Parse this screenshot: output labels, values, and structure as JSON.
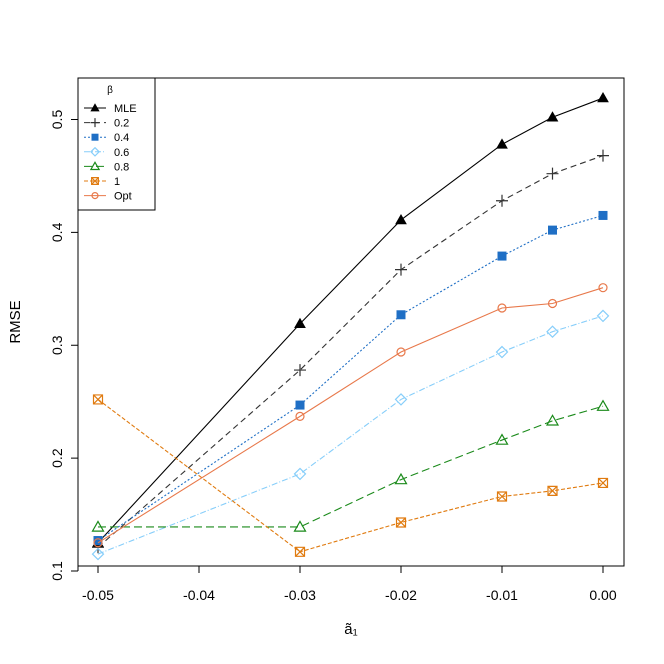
{
  "chart_data": {
    "type": "line",
    "title": "",
    "xlabel": "ã₁",
    "ylabel": "RMSE",
    "xlim": [
      -0.05,
      0.0
    ],
    "ylim": [
      0.1,
      0.52
    ],
    "x_ticks": [
      -0.05,
      -0.04,
      -0.03,
      -0.02,
      -0.01,
      0.0
    ],
    "x_tick_labels": [
      "-0.05",
      "-0.04",
      "-0.03",
      "-0.02",
      "-0.01",
      "0.00"
    ],
    "y_ticks": [
      0.1,
      0.2,
      0.3,
      0.4,
      0.5
    ],
    "y_tick_labels": [
      "0.1",
      "0.2",
      "0.3",
      "0.4",
      "0.5"
    ],
    "grid": false,
    "legend": {
      "title": "β",
      "position": "top-left"
    },
    "x": [
      -0.05,
      -0.03,
      -0.02,
      -0.01,
      -0.005,
      0.0
    ],
    "series": [
      {
        "name": "MLE",
        "color": "#000000",
        "marker": "triangle-filled",
        "dash": "",
        "values": [
          0.125,
          0.319,
          0.411,
          0.478,
          0.502,
          0.519
        ]
      },
      {
        "name": "0.2",
        "color": "#333333",
        "marker": "plus",
        "dash": "6,4",
        "values": [
          0.121,
          0.278,
          0.367,
          0.428,
          0.452,
          0.468
        ]
      },
      {
        "name": "0.4",
        "color": "#1f6fc5",
        "marker": "square-filled",
        "dash": "2,2",
        "values": [
          0.127,
          0.247,
          0.327,
          0.379,
          0.402,
          0.415
        ]
      },
      {
        "name": "0.6",
        "color": "#87cefa",
        "marker": "diamond-open",
        "dash": "6,2,1,2",
        "values": [
          0.115,
          0.186,
          0.252,
          0.294,
          0.312,
          0.326
        ]
      },
      {
        "name": "0.8",
        "color": "#1a8a1a",
        "marker": "triangle-open",
        "dash": "8,4",
        "values": [
          0.139,
          0.139,
          0.181,
          0.216,
          0.233,
          0.246
        ]
      },
      {
        "name": "1",
        "color": "#e07b10",
        "marker": "square-x",
        "dash": "4,2",
        "values": [
          0.252,
          0.117,
          0.143,
          0.166,
          0.171,
          0.178
        ]
      },
      {
        "name": "Opt",
        "color": "#e8784a",
        "marker": "circle-open",
        "dash": "",
        "values": [
          0.125,
          0.237,
          0.294,
          0.333,
          0.337,
          0.351
        ]
      }
    ]
  }
}
